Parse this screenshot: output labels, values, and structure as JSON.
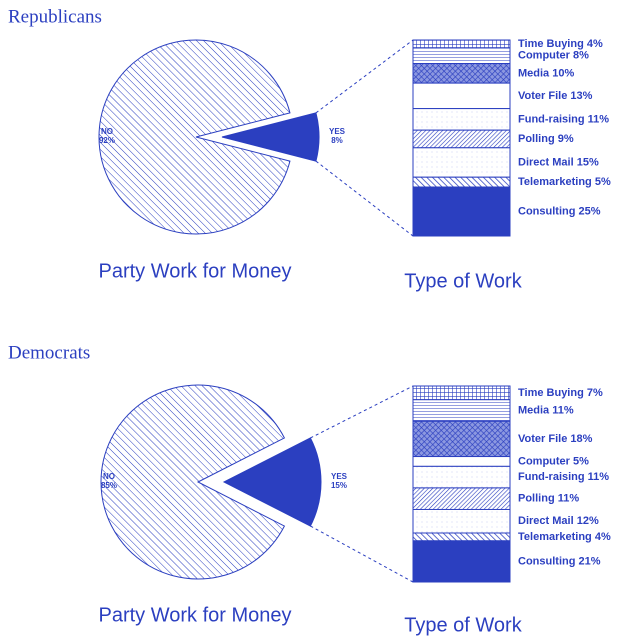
{
  "chart_data": [
    {
      "type": "pie",
      "title": "Republicans",
      "pie": {
        "title": "Party Work for Money",
        "categories": [
          "NO",
          "YES"
        ],
        "values": [
          92,
          8
        ],
        "value_labels": [
          "92%",
          "8%"
        ]
      },
      "breakdown": {
        "title": "Type of Work",
        "categories": [
          "Time Buying",
          "Computer",
          "Media",
          "Voter File",
          "Fund-raising",
          "Polling",
          "Direct Mail",
          "Telemarketing",
          "Consulting"
        ],
        "values": [
          4,
          8,
          10,
          13,
          11,
          9,
          15,
          5,
          25
        ],
        "value_labels": [
          "4%",
          "8%",
          "10%",
          "13%",
          "11%",
          "9%",
          "15%",
          "5%",
          "25%"
        ]
      },
      "color": "#2b3fc0"
    },
    {
      "type": "pie",
      "title": "Democrats",
      "pie": {
        "title": "Party Work for Money",
        "categories": [
          "NO",
          "YES"
        ],
        "values": [
          85,
          15
        ],
        "value_labels": [
          "85%",
          "15%"
        ]
      },
      "breakdown": {
        "title": "Type of Work",
        "categories": [
          "Time Buying",
          "Media",
          "Voter File",
          "Computer",
          "Fund-raising",
          "Polling",
          "Direct Mail",
          "Telemarketing",
          "Consulting"
        ],
        "values": [
          7,
          11,
          18,
          5,
          11,
          11,
          12,
          4,
          21
        ],
        "value_labels": [
          "7%",
          "11%",
          "18%",
          "5%",
          "11%",
          "11%",
          "12%",
          "4%",
          "21%"
        ]
      },
      "color": "#2b3fc0"
    }
  ]
}
